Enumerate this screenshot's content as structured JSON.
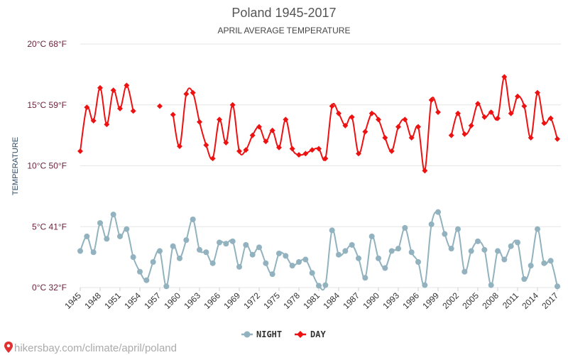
{
  "chart_data": {
    "type": "line",
    "title": "Poland 1945-2017",
    "subtitle": "APRIL AVERAGE TEMPERATURE",
    "ylabel": "TEMPERATURE",
    "xlabel": "",
    "ylim": [
      0,
      20
    ],
    "yticks": [
      {
        "value": 0,
        "label": "0°C 32°F"
      },
      {
        "value": 5,
        "label": "5°C 41°F"
      },
      {
        "value": 10,
        "label": "10°C 50°F"
      },
      {
        "value": 15,
        "label": "15°C 59°F"
      },
      {
        "value": 20,
        "label": "20°C 68°F"
      }
    ],
    "x": [
      1945,
      1946,
      1947,
      1948,
      1949,
      1950,
      1951,
      1952,
      1953,
      1954,
      1955,
      1956,
      1957,
      1958,
      1959,
      1960,
      1961,
      1962,
      1963,
      1964,
      1965,
      1966,
      1967,
      1968,
      1969,
      1970,
      1971,
      1972,
      1973,
      1974,
      1975,
      1976,
      1977,
      1978,
      1979,
      1980,
      1981,
      1982,
      1983,
      1984,
      1985,
      1986,
      1987,
      1988,
      1989,
      1990,
      1991,
      1992,
      1993,
      1994,
      1995,
      1996,
      1997,
      1998,
      1999,
      2000,
      2001,
      2002,
      2003,
      2004,
      2005,
      2006,
      2007,
      2008,
      2009,
      2010,
      2011,
      2012,
      2013,
      2014,
      2015,
      2016,
      2017
    ],
    "xticks": [
      1945,
      1948,
      1951,
      1954,
      1957,
      1960,
      1963,
      1966,
      1969,
      1972,
      1975,
      1978,
      1981,
      1984,
      1987,
      1990,
      1993,
      1996,
      1999,
      2002,
      2005,
      2008,
      2011,
      2014,
      2017
    ],
    "grid": true,
    "legend_position": "bottom-center",
    "series": [
      {
        "name": "NIGHT",
        "color": "#91b2be",
        "values": [
          3.0,
          4.2,
          2.9,
          5.3,
          4.0,
          6.0,
          4.2,
          4.8,
          2.5,
          1.3,
          0.6,
          2.1,
          3.0,
          0.1,
          3.4,
          2.4,
          3.9,
          5.6,
          3.1,
          2.9,
          2.0,
          3.7,
          3.6,
          3.8,
          1.7,
          3.5,
          2.7,
          3.3,
          2.0,
          1.1,
          2.8,
          2.6,
          1.8,
          2.1,
          2.3,
          1.2,
          0.15,
          0.2,
          4.7,
          2.7,
          3.0,
          3.5,
          2.4,
          0.8,
          4.2,
          2.4,
          1.6,
          3.0,
          3.2,
          4.9,
          2.9,
          2.1,
          0.2,
          5.2,
          6.2,
          4.4,
          3.2,
          4.8,
          1.3,
          3.0,
          3.8,
          3.1,
          0.2,
          3.0,
          2.3,
          3.4,
          3.7,
          0.7,
          1.8,
          4.8,
          2.0,
          2.2,
          0.1
        ]
      },
      {
        "name": "DAY",
        "color": "#ee1111",
        "values": [
          11.2,
          14.8,
          13.7,
          16.4,
          13.4,
          16.2,
          14.7,
          16.6,
          14.5,
          null,
          null,
          null,
          14.9,
          null,
          14.2,
          11.6,
          15.9,
          16.0,
          13.6,
          11.7,
          10.6,
          13.8,
          11.9,
          15.0,
          11.2,
          11.3,
          12.5,
          13.2,
          12.0,
          12.9,
          11.5,
          13.8,
          11.4,
          10.9,
          11.0,
          11.3,
          11.4,
          10.6,
          14.9,
          14.3,
          13.3,
          14.0,
          11.0,
          12.8,
          14.3,
          13.8,
          12.3,
          11.2,
          13.2,
          13.8,
          12.3,
          13.2,
          9.6,
          15.4,
          14.4,
          null,
          12.5,
          14.3,
          12.6,
          13.3,
          15.1,
          14.0,
          14.4,
          13.9,
          17.3,
          14.3,
          15.7,
          14.9,
          12.3,
          16.0,
          13.5,
          13.9,
          12.2
        ]
      }
    ]
  },
  "source_text": "hikersbay.com/climate/april/poland",
  "source_icon": "map-pin-icon"
}
